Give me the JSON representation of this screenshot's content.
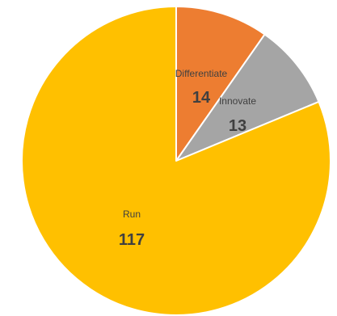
{
  "chart_data": {
    "type": "pie",
    "title": "",
    "categories": [
      "Differentiate",
      "Innovate",
      "Run"
    ],
    "values": [
      14,
      13,
      117
    ],
    "colors": [
      "#ED7D31",
      "#A5A5A5",
      "#FFC000"
    ],
    "slice_border_color": "#FFFFFF",
    "start_angle_deg": 0,
    "direction": "clockwise",
    "legend": "none"
  }
}
